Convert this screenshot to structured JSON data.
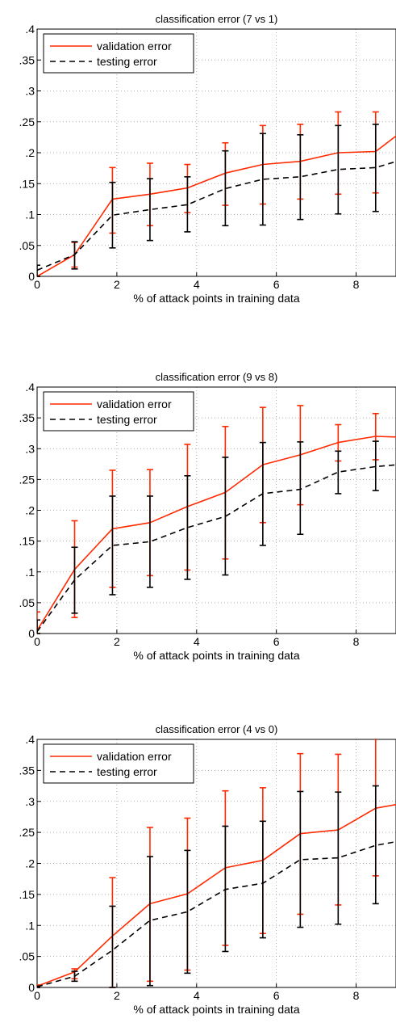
{
  "chart_data": [
    {
      "type": "line",
      "title": "classification error (7 vs 1)",
      "xlabel": "% of attack points in training data",
      "ylabel": "",
      "xlim": [
        0,
        9
      ],
      "ylim": [
        0,
        0.4
      ],
      "xticks": [
        0,
        2,
        4,
        6,
        8
      ],
      "yticks": [
        0,
        0.05,
        0.1,
        0.15,
        0.2,
        0.25,
        0.3,
        0.35,
        0.4
      ],
      "grid": true,
      "legend": "top-left",
      "x": [
        0,
        0.94,
        1.89,
        2.83,
        3.77,
        4.72,
        5.66,
        6.6,
        7.55,
        8.49,
        9.43
      ],
      "series": [
        {
          "name": "validation error",
          "color": "#ff2a00",
          "style": "solid",
          "values": [
            0.0,
            0.035,
            0.125,
            0.133,
            0.143,
            0.167,
            0.181,
            0.186,
            0.2,
            0.202,
            0.248
          ],
          "err_low": [
            0.0,
            0.015,
            0.07,
            0.082,
            0.103,
            0.115,
            0.117,
            0.125,
            0.133,
            0.135,
            0.19
          ],
          "err_high": [
            0.0,
            0.055,
            0.176,
            0.183,
            0.181,
            0.216,
            0.244,
            0.246,
            0.266,
            0.266,
            0.3
          ]
        },
        {
          "name": "testing error",
          "color": "#000000",
          "style": "dashed",
          "values": [
            0.01,
            0.035,
            0.099,
            0.108,
            0.116,
            0.142,
            0.157,
            0.161,
            0.173,
            0.176,
            0.194
          ],
          "err_low": [
            0.0,
            0.012,
            0.046,
            0.058,
            0.072,
            0.082,
            0.083,
            0.092,
            0.101,
            0.105,
            0.131
          ],
          "err_high": [
            0.018,
            0.056,
            0.152,
            0.158,
            0.161,
            0.203,
            0.231,
            0.229,
            0.244,
            0.246,
            0.257
          ]
        }
      ]
    },
    {
      "type": "line",
      "title": "classification error (9 vs 8)",
      "xlabel": "% of attack points in training data",
      "ylabel": "",
      "xlim": [
        0,
        9
      ],
      "ylim": [
        0,
        0.4
      ],
      "xticks": [
        0,
        2,
        4,
        6,
        8
      ],
      "yticks": [
        0,
        0.05,
        0.1,
        0.15,
        0.2,
        0.25,
        0.3,
        0.35,
        0.4
      ],
      "grid": true,
      "legend": "top-left",
      "x": [
        0,
        0.94,
        1.89,
        2.83,
        3.77,
        4.72,
        5.66,
        6.6,
        7.55,
        8.49,
        9.43
      ],
      "series": [
        {
          "name": "validation error",
          "color": "#ff2a00",
          "style": "solid",
          "values": [
            0.005,
            0.104,
            0.17,
            0.18,
            0.206,
            0.229,
            0.274,
            0.29,
            0.31,
            0.32,
            0.318
          ],
          "err_low": [
            0.0,
            0.026,
            0.075,
            0.094,
            0.103,
            0.121,
            0.18,
            0.209,
            0.28,
            0.282,
            0.278
          ],
          "err_high": [
            0.035,
            0.183,
            0.265,
            0.266,
            0.307,
            0.336,
            0.367,
            0.37,
            0.339,
            0.357,
            0.358
          ]
        },
        {
          "name": "testing error",
          "color": "#000000",
          "style": "dashed",
          "values": [
            0.003,
            0.087,
            0.143,
            0.149,
            0.172,
            0.19,
            0.227,
            0.234,
            0.262,
            0.271,
            0.276
          ],
          "err_low": [
            0.0,
            0.033,
            0.063,
            0.075,
            0.088,
            0.095,
            0.143,
            0.161,
            0.227,
            0.232,
            0.241
          ],
          "err_high": [
            0.022,
            0.14,
            0.223,
            0.223,
            0.256,
            0.286,
            0.31,
            0.311,
            0.296,
            0.312,
            0.311
          ]
        }
      ]
    },
    {
      "type": "line",
      "title": "classification error (4 vs 0)",
      "xlabel": "% of attack points in training data",
      "ylabel": "",
      "xlim": [
        0,
        9
      ],
      "ylim": [
        0,
        0.4
      ],
      "xticks": [
        0,
        2,
        4,
        6,
        8
      ],
      "yticks": [
        0,
        0.05,
        0.1,
        0.15,
        0.2,
        0.25,
        0.3,
        0.35,
        0.4
      ],
      "grid": true,
      "legend": "top-left",
      "x": [
        0,
        0.94,
        1.89,
        2.83,
        3.77,
        4.72,
        5.66,
        6.6,
        7.55,
        8.49,
        9.43
      ],
      "series": [
        {
          "name": "validation error",
          "color": "#ff2a00",
          "style": "solid",
          "values": [
            0.002,
            0.025,
            0.083,
            0.135,
            0.151,
            0.193,
            0.205,
            0.248,
            0.254,
            0.289,
            0.3
          ],
          "err_low": [
            0.0,
            0.014,
            0.0,
            0.01,
            0.028,
            0.068,
            0.087,
            0.118,
            0.133,
            0.18,
            0.185
          ],
          "err_high": [
            0.004,
            0.03,
            0.177,
            0.258,
            0.273,
            0.317,
            0.322,
            0.377,
            0.376,
            0.41,
            0.41
          ]
        },
        {
          "name": "testing error",
          "color": "#000000",
          "style": "dashed",
          "values": [
            0.001,
            0.018,
            0.06,
            0.108,
            0.122,
            0.158,
            0.168,
            0.206,
            0.209,
            0.229,
            0.24
          ],
          "err_low": [
            0.0,
            0.01,
            0.0,
            0.003,
            0.023,
            0.058,
            0.08,
            0.097,
            0.102,
            0.135,
            0.142
          ],
          "err_high": [
            0.002,
            0.026,
            0.131,
            0.211,
            0.221,
            0.26,
            0.268,
            0.316,
            0.315,
            0.325,
            0.337
          ]
        }
      ]
    }
  ]
}
